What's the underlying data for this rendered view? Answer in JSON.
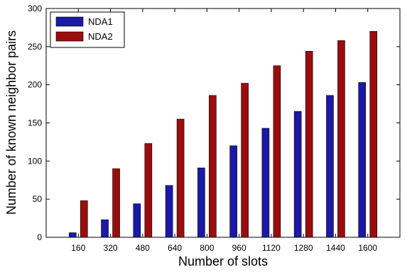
{
  "chart_data": {
    "type": "bar",
    "title": "",
    "xlabel": "Number of slots",
    "ylabel": "Number of known neighbor pairs",
    "categories": [
      "160",
      "320",
      "480",
      "640",
      "800",
      "960",
      "1120",
      "1280",
      "1440",
      "1600"
    ],
    "series": [
      {
        "name": "NDA1",
        "color": "#1a1aa6",
        "values": [
          6,
          23,
          44,
          68,
          91,
          120,
          143,
          165,
          186,
          203
        ]
      },
      {
        "name": "NDA2",
        "color": "#9b0d0d",
        "values": [
          48,
          90,
          123,
          155,
          186,
          202,
          225,
          244,
          258,
          270
        ]
      }
    ],
    "ylim": [
      0,
      300
    ],
    "yticks": [
      0,
      50,
      100,
      150,
      200,
      250,
      300
    ],
    "grid": false,
    "legend_position": "top-left"
  }
}
